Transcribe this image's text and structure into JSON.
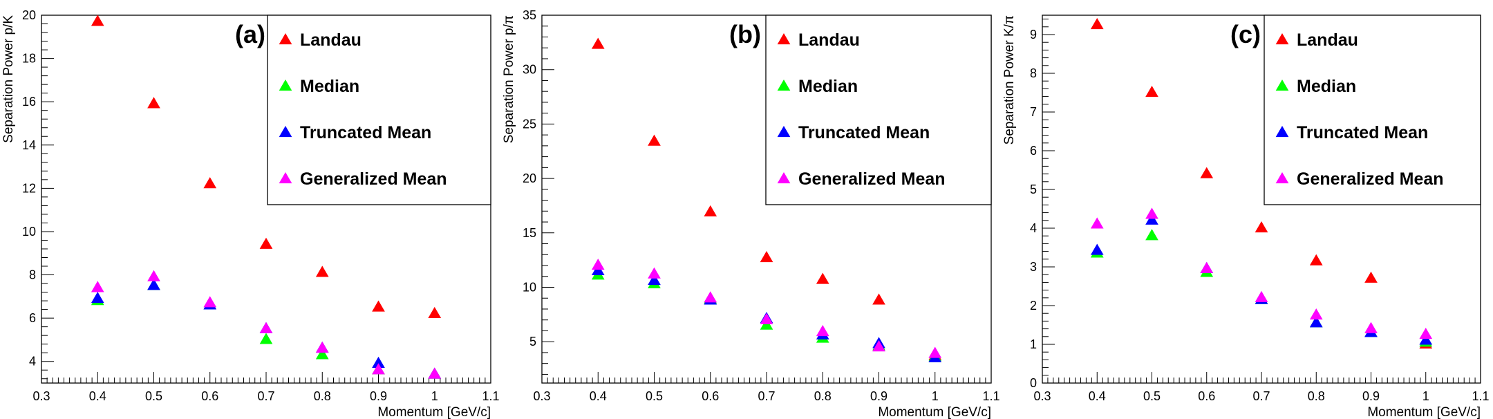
{
  "legend_marker": "triangle",
  "chart_data": [
    {
      "type": "scatter",
      "panel_label": "(a)",
      "xlabel": "Momentum [GeV/c]",
      "ylabel": "Separation Power p/K",
      "xlim": [
        0.3,
        1.1
      ],
      "ylim": [
        3.0,
        20.0
      ],
      "xticks": [
        "0.3",
        "0.4",
        "0.5",
        "0.6",
        "0.7",
        "0.8",
        "0.9",
        "1",
        "1.1"
      ],
      "yticks": [
        "4",
        "6",
        "8",
        "10",
        "12",
        "14",
        "16",
        "18",
        "20"
      ],
      "x": [
        0.4,
        0.5,
        0.6,
        0.7,
        0.8,
        0.9,
        1.0
      ],
      "series": [
        {
          "name": "Landau",
          "color": "#ff0000",
          "values": [
            19.7,
            15.9,
            12.2,
            9.4,
            8.1,
            6.5,
            6.2
          ]
        },
        {
          "name": "Median",
          "color": "#00ff00",
          "values": [
            6.8,
            7.5,
            6.6,
            5.0,
            4.3,
            3.6,
            3.4
          ]
        },
        {
          "name": "Truncated Mean",
          "color": "#0000ff",
          "values": [
            6.9,
            7.5,
            6.6,
            5.5,
            4.6,
            3.9,
            3.4
          ]
        },
        {
          "name": "Generalized Mean",
          "color": "#ff00ff",
          "values": [
            7.4,
            7.9,
            6.7,
            5.5,
            4.6,
            3.6,
            3.4
          ]
        }
      ]
    },
    {
      "type": "scatter",
      "panel_label": "(b)",
      "xlabel": "Momentum [GeV/c]",
      "ylabel": "Separation Power p/π",
      "xlim": [
        0.3,
        1.1
      ],
      "ylim": [
        1.2,
        35.0
      ],
      "xticks": [
        "0.3",
        "0.4",
        "0.5",
        "0.6",
        "0.7",
        "0.8",
        "0.9",
        "1",
        "1.1"
      ],
      "yticks": [
        "5",
        "10",
        "15",
        "20",
        "25",
        "30",
        "35"
      ],
      "x": [
        0.4,
        0.5,
        0.6,
        0.7,
        0.8,
        0.9,
        1.0
      ],
      "series": [
        {
          "name": "Landau",
          "color": "#ff0000",
          "values": [
            32.3,
            23.4,
            16.9,
            12.7,
            10.7,
            8.8,
            3.7
          ]
        },
        {
          "name": "Median",
          "color": "#00ff00",
          "values": [
            11.1,
            10.3,
            8.9,
            6.5,
            5.3,
            4.6,
            3.6
          ]
        },
        {
          "name": "Truncated Mean",
          "color": "#0000ff",
          "values": [
            11.5,
            10.6,
            8.8,
            7.1,
            5.6,
            4.8,
            3.5
          ]
        },
        {
          "name": "Generalized Mean",
          "color": "#ff00ff",
          "values": [
            12.0,
            11.2,
            9.0,
            7.0,
            5.9,
            4.5,
            3.9
          ]
        }
      ]
    },
    {
      "type": "scatter",
      "panel_label": "(c)",
      "xlabel": "Momentum [GeV/c]",
      "ylabel": "Separation Power K/π",
      "xlim": [
        0.3,
        1.1
      ],
      "ylim": [
        0.0,
        9.5
      ],
      "xticks": [
        "0.3",
        "0.4",
        "0.5",
        "0.6",
        "0.7",
        "0.8",
        "0.9",
        "1",
        "1.1"
      ],
      "yticks": [
        "0",
        "1",
        "2",
        "3",
        "4",
        "5",
        "6",
        "7",
        "8",
        "9"
      ],
      "x": [
        0.4,
        0.5,
        0.6,
        0.7,
        0.8,
        0.9,
        1.0
      ],
      "series": [
        {
          "name": "Landau",
          "color": "#ff0000",
          "values": [
            9.25,
            7.5,
            5.4,
            4.0,
            3.15,
            2.7,
            1.0
          ]
        },
        {
          "name": "Median",
          "color": "#00ff00",
          "values": [
            3.35,
            3.8,
            2.85,
            2.15,
            1.55,
            1.3,
            1.05
          ]
        },
        {
          "name": "Truncated Mean",
          "color": "#0000ff",
          "values": [
            3.42,
            4.2,
            2.95,
            2.15,
            1.55,
            1.3,
            1.1
          ]
        },
        {
          "name": "Generalized Mean",
          "color": "#ff00ff",
          "values": [
            4.1,
            4.35,
            2.95,
            2.2,
            1.75,
            1.4,
            1.25
          ]
        }
      ]
    }
  ]
}
